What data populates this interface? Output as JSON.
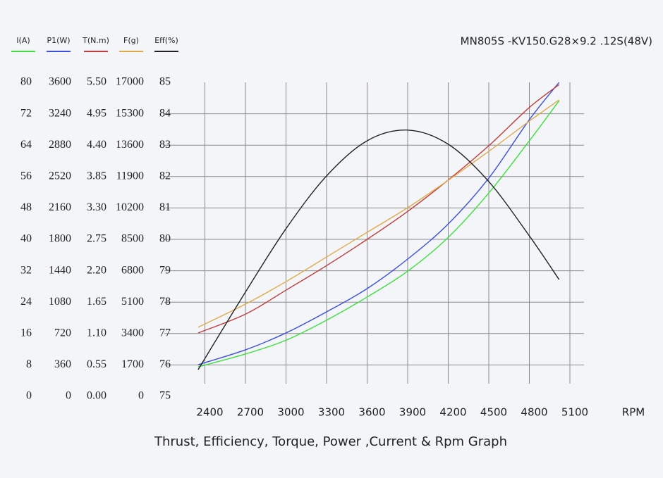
{
  "chart_data": {
    "type": "line",
    "title": "MN805S -KV150.G28×9.2 .12S(48V)",
    "caption": "Thrust, Efficiency, Torque, Power ,Current & Rpm Graph",
    "x_label": "RPM",
    "x": [
      2350,
      2700,
      3000,
      3300,
      3600,
      3900,
      4200,
      4500,
      4800,
      5020
    ],
    "xlim": [
      2100,
      5100
    ],
    "xticks": [
      2400,
      2700,
      3000,
      3300,
      3600,
      3900,
      4200,
      4500,
      4800,
      5100
    ],
    "grid": true,
    "series": [
      {
        "name": "I(A)",
        "color": "#3ddf3d",
        "ylim": [
          0,
          80
        ],
        "yticks": [
          0,
          8,
          16,
          24,
          32,
          40,
          48,
          56,
          64,
          72,
          80
        ],
        "values": [
          7.5,
          10.8,
          14.3,
          19.4,
          25.3,
          31.9,
          40.5,
          51.8,
          65.1,
          75.3
        ]
      },
      {
        "name": "P1(W)",
        "color": "#3a4ee0",
        "ylim": [
          0,
          3600
        ],
        "yticks": [
          0,
          360,
          720,
          1080,
          1440,
          1800,
          2160,
          2520,
          2880,
          3240,
          3600
        ],
        "values": [
          363,
          533,
          727,
          969,
          1235,
          1574,
          1977,
          2502,
          3172,
          3600
        ]
      },
      {
        "name": "T(N.m)",
        "color": "#c23b3b",
        "ylim": [
          0,
          5.5
        ],
        "yticks": [
          {
            "value": 0,
            "label": "0.00"
          },
          0.55,
          {
            "value": 1.1,
            "label": "1.10"
          },
          1.65,
          {
            "value": 2.2,
            "label": "2.20"
          },
          2.75,
          {
            "value": 3.3,
            "label": "3.30"
          },
          3.85,
          {
            "value": 4.4,
            "label": "4.40"
          },
          4.95,
          {
            "value": 5.5,
            "label": "5.50"
          }
        ],
        "values": [
          1.11,
          1.44,
          1.86,
          2.29,
          2.75,
          3.24,
          3.79,
          4.39,
          5.06,
          5.46
        ]
      },
      {
        "name": "F(g)",
        "color": "#e0a94a",
        "ylim": [
          0,
          17000
        ],
        "yticks": [
          0,
          1700,
          3400,
          5100,
          6800,
          8500,
          10200,
          11900,
          13600,
          15300,
          17000
        ],
        "values": [
          3740,
          4995,
          6210,
          7545,
          8880,
          10215,
          11700,
          13265,
          14900,
          16050
        ]
      },
      {
        "name": "Eff(%)",
        "color": "#222222",
        "ylim": [
          75,
          85
        ],
        "yticks": [
          75,
          76,
          77,
          78,
          79,
          80,
          81,
          82,
          83,
          84,
          85
        ],
        "values": [
          75.85,
          78.32,
          80.34,
          82.02,
          83.14,
          83.48,
          83.03,
          81.84,
          80.11,
          78.72
        ]
      }
    ]
  }
}
